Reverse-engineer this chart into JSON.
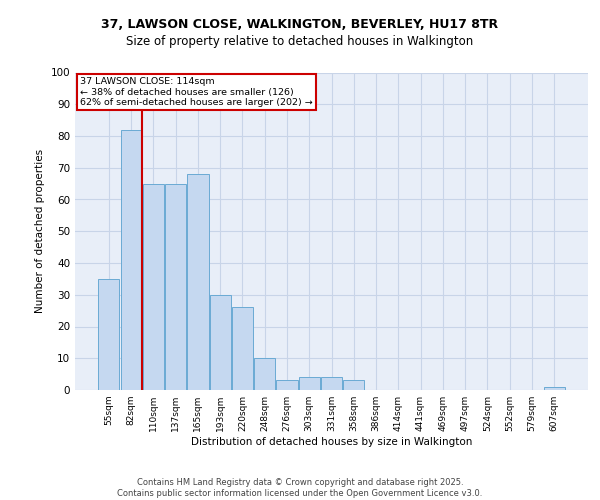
{
  "title1": "37, LAWSON CLOSE, WALKINGTON, BEVERLEY, HU17 8TR",
  "title2": "Size of property relative to detached houses in Walkington",
  "xlabel": "Distribution of detached houses by size in Walkington",
  "ylabel": "Number of detached properties",
  "categories": [
    "55sqm",
    "82sqm",
    "110sqm",
    "137sqm",
    "165sqm",
    "193sqm",
    "220sqm",
    "248sqm",
    "276sqm",
    "303sqm",
    "331sqm",
    "358sqm",
    "386sqm",
    "414sqm",
    "441sqm",
    "469sqm",
    "497sqm",
    "524sqm",
    "552sqm",
    "579sqm",
    "607sqm"
  ],
  "values": [
    35,
    82,
    65,
    65,
    68,
    30,
    26,
    10,
    3,
    4,
    4,
    3,
    0,
    0,
    0,
    0,
    0,
    0,
    0,
    0,
    1
  ],
  "bar_color": "#c5d8f0",
  "bar_edge_color": "#6aaad4",
  "grid_color": "#c8d4e8",
  "bg_color": "#e8eef8",
  "vline_x": 2.5,
  "vline_color": "#cc0000",
  "annotation_title": "37 LAWSON CLOSE: 114sqm",
  "annotation_line1": "← 38% of detached houses are smaller (126)",
  "annotation_line2": "62% of semi-detached houses are larger (202) →",
  "annotation_box_edge_color": "#cc0000",
  "ylim": [
    0,
    100
  ],
  "yticks": [
    0,
    10,
    20,
    30,
    40,
    50,
    60,
    70,
    80,
    90,
    100
  ],
  "footer1": "Contains HM Land Registry data © Crown copyright and database right 2025.",
  "footer2": "Contains public sector information licensed under the Open Government Licence v3.0."
}
